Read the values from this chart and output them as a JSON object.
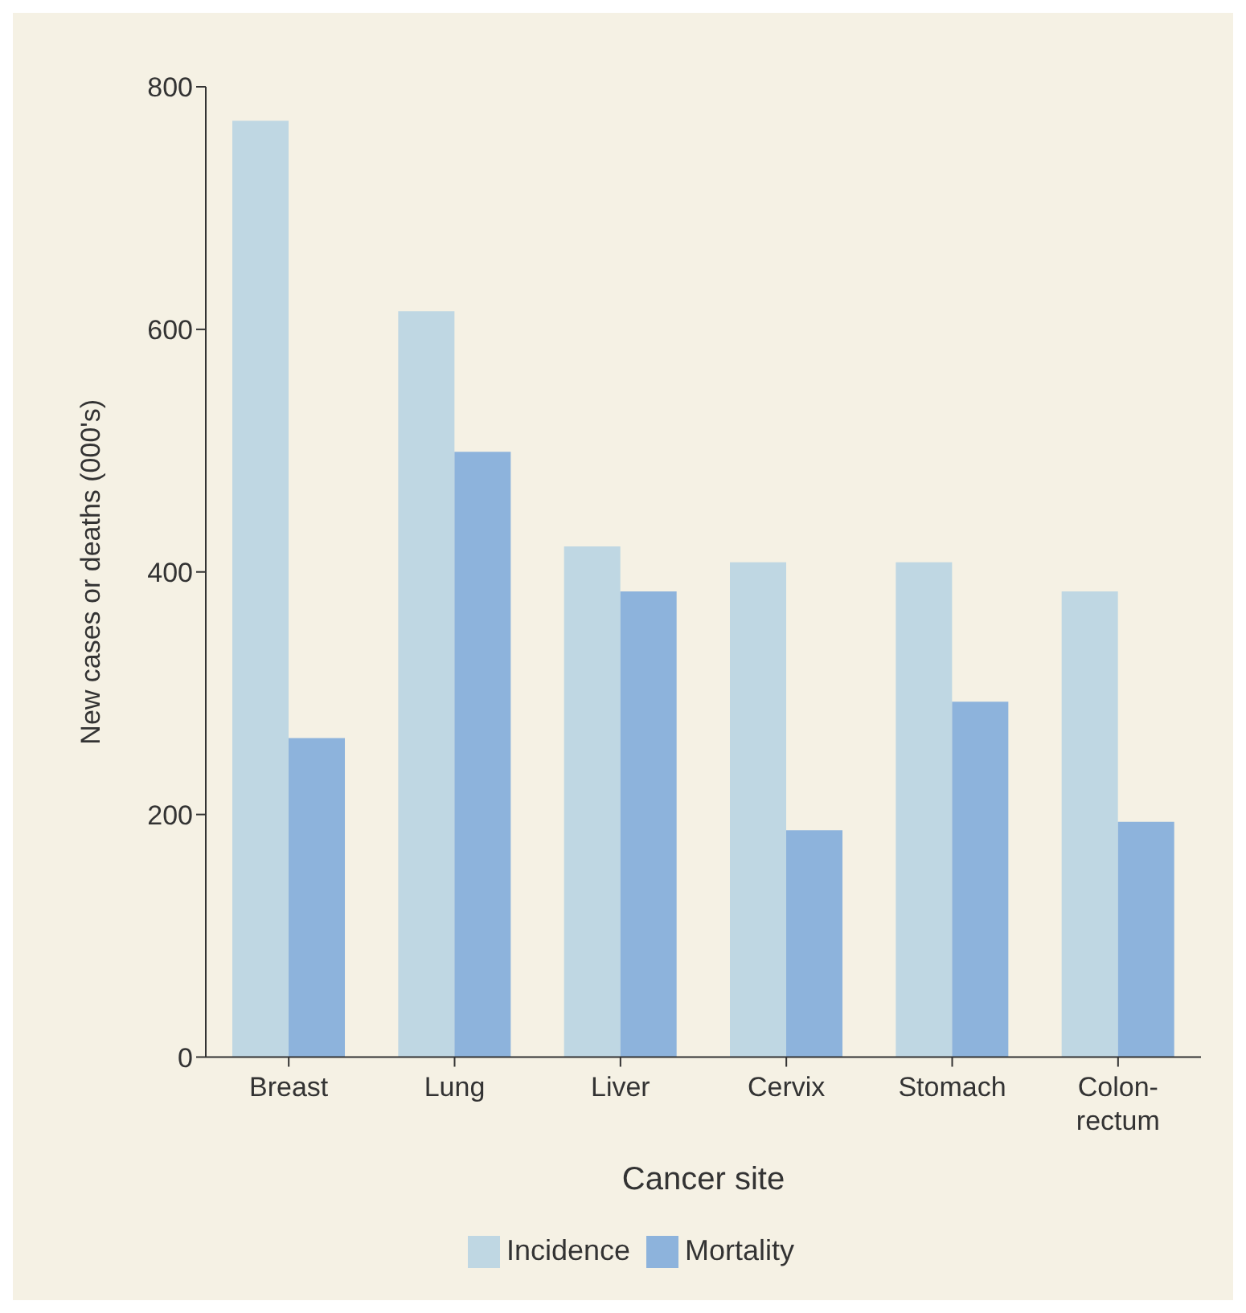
{
  "chart_data": {
    "type": "bar",
    "xlabel": "Cancer site",
    "ylabel": "New cases or deaths (000's)",
    "categories": [
      "Breast",
      "Lung",
      "Liver",
      "Cervix",
      "Stomach",
      "Colon-rectum"
    ],
    "series": [
      {
        "name": "Incidence",
        "color": "#bfd7e3",
        "values": [
          772,
          615,
          421,
          408,
          408,
          384
        ]
      },
      {
        "name": "Mortality",
        "color": "#8db3dc",
        "values": [
          263,
          499,
          384,
          187,
          293,
          194
        ]
      }
    ],
    "ylim": [
      0,
      800
    ],
    "yticks": [
      0,
      200,
      400,
      600,
      800
    ],
    "grid": false,
    "legend": "bottom"
  }
}
